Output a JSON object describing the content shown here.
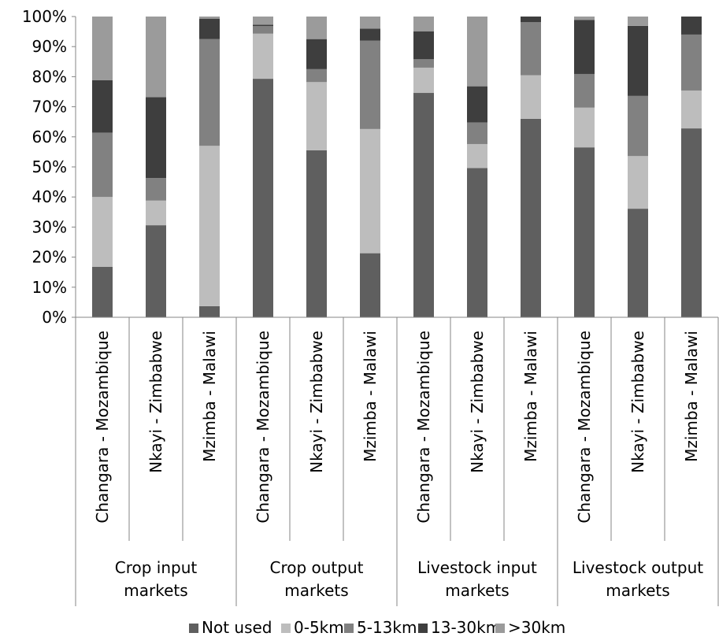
{
  "chart_data": {
    "type": "bar",
    "stacked": true,
    "percent": true,
    "categories": [
      "Changara - Mozambique",
      "Nkayi - Zimbabwe",
      "Mzimba - Malawi",
      "Changara - Mozambique",
      "Nkayi - Zimbabwe",
      "Mzimba - Malawi",
      "Changara - Mozambique",
      "Nkayi - Zimbabwe",
      "Mzimba - Malawi",
      "Changara - Mozambique",
      "Nkayi - Zimbabwe",
      "Mzimba - Malawi"
    ],
    "groups": [
      {
        "label": "Crop input markets",
        "lines": [
          "Crop input",
          "markets"
        ],
        "span": 3
      },
      {
        "label": "Crop output markets",
        "lines": [
          "Crop output",
          "markets"
        ],
        "span": 3
      },
      {
        "label": "Livestock input markets",
        "lines": [
          "Livestock input",
          "markets"
        ],
        "span": 3
      },
      {
        "label": "Livestock output markets",
        "lines": [
          "Livestock output",
          "markets"
        ],
        "span": 3
      }
    ],
    "series": [
      {
        "name": "Not used",
        "color": "#5f5f5f",
        "values": [
          16.8,
          30.6,
          3.7,
          79.3,
          55.5,
          21.3,
          74.6,
          49.6,
          66.0,
          56.5,
          36.1,
          62.8
        ]
      },
      {
        "name": "0-5km",
        "color": "#bdbdbd",
        "values": [
          23.2,
          8.2,
          53.3,
          15.0,
          22.7,
          41.3,
          8.4,
          8.0,
          14.5,
          13.2,
          17.5,
          12.6
        ]
      },
      {
        "name": "5-13km",
        "color": "#818181",
        "values": [
          21.4,
          7.5,
          35.5,
          2.5,
          4.3,
          29.4,
          2.8,
          7.2,
          17.6,
          11.2,
          20.0,
          18.6
        ]
      },
      {
        "name": "13-30km",
        "color": "#3e3e3e",
        "values": [
          17.4,
          26.9,
          6.8,
          0.5,
          10.0,
          4.0,
          9.3,
          12.0,
          1.9,
          18.0,
          23.3,
          6.0
        ]
      },
      {
        "name": ">30km",
        "color": "#9b9b9b",
        "values": [
          21.2,
          26.8,
          0.7,
          2.7,
          7.5,
          4.0,
          4.9,
          23.2,
          0.0,
          1.1,
          3.1,
          0.0
        ]
      }
    ],
    "yticks": [
      "0%",
      "10%",
      "20%",
      "30%",
      "40%",
      "50%",
      "60%",
      "70%",
      "80%",
      "90%",
      "100%"
    ],
    "ylim": [
      0,
      100
    ],
    "title": "",
    "xlabel": "",
    "ylabel": "",
    "legend_position": "bottom",
    "grid": false,
    "axis_color": "#868686"
  }
}
